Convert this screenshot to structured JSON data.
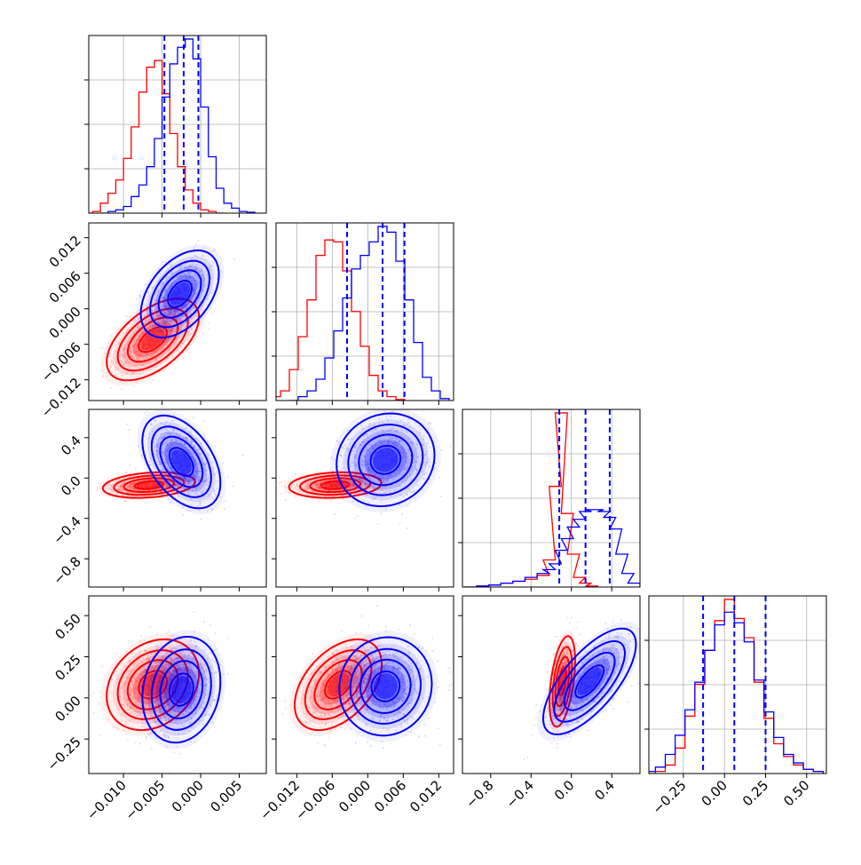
{
  "chart_data": {
    "type": "corner",
    "series": [
      {
        "name": "",
        "color": "#ff0000"
      },
      {
        "name": "",
        "color": "#0000ff"
      }
    ],
    "parameters": [
      {
        "range": [
          -0.0145,
          0.0085
        ],
        "ticks": [
          -0.01,
          -0.005,
          0.0,
          0.005
        ],
        "tick_labels": [
          "−0.010",
          "−0.005",
          "0.000",
          "0.005"
        ]
      },
      {
        "range": [
          -0.0155,
          0.0145
        ],
        "ticks": [
          -0.012,
          -0.006,
          0.0,
          0.006,
          0.012
        ],
        "tick_labels": [
          "−0.012",
          "−0.006",
          "0.000",
          "0.006",
          "0.012"
        ]
      },
      {
        "range": [
          -1.08,
          0.68
        ],
        "ticks": [
          -0.8,
          -0.4,
          0.0,
          0.4
        ],
        "tick_labels": [
          "−0.8",
          "−0.4",
          "0.0",
          "0.4"
        ]
      },
      {
        "range": [
          -0.46,
          0.62
        ],
        "ticks": [
          -0.25,
          0.0,
          0.25,
          0.5
        ],
        "tick_labels": [
          "−0.25",
          "0.00",
          "0.25",
          "0.50"
        ]
      }
    ],
    "diagonal": [
      {
        "blue_quantiles": [
          -0.0047,
          -0.0022,
          -0.0003
        ],
        "red": [
          [
            -0.0145,
            0
          ],
          [
            -0.0135,
            0.01
          ],
          [
            -0.0125,
            0.06
          ],
          [
            -0.0115,
            0.12
          ],
          [
            -0.0105,
            0.2
          ],
          [
            -0.0095,
            0.33
          ],
          [
            -0.0085,
            0.52
          ],
          [
            -0.0075,
            0.73
          ],
          [
            -0.0065,
            0.88
          ],
          [
            -0.0055,
            0.92
          ],
          [
            -0.0045,
            0.72
          ],
          [
            -0.0035,
            0.48
          ],
          [
            -0.0025,
            0.28
          ],
          [
            -0.0015,
            0.14
          ],
          [
            -0.0005,
            0.06
          ],
          [
            0.0005,
            0.02
          ],
          [
            0.0015,
            0.01
          ],
          [
            0.0025,
            0
          ]
        ],
        "blue": [
          [
            -0.0125,
            0
          ],
          [
            -0.0115,
            0.01
          ],
          [
            -0.0105,
            0.02
          ],
          [
            -0.0095,
            0.04
          ],
          [
            -0.0085,
            0.1
          ],
          [
            -0.0075,
            0.17
          ],
          [
            -0.0065,
            0.28
          ],
          [
            -0.0055,
            0.45
          ],
          [
            -0.0045,
            0.7
          ],
          [
            -0.0035,
            0.9
          ],
          [
            -0.0025,
            1.0
          ],
          [
            -0.0015,
            1.05
          ],
          [
            -0.0005,
            0.93
          ],
          [
            0.0005,
            0.64
          ],
          [
            0.0015,
            0.34
          ],
          [
            0.0025,
            0.15
          ],
          [
            0.0035,
            0.06
          ],
          [
            0.0045,
            0.03
          ],
          [
            0.0055,
            0.01
          ],
          [
            0.0065,
            0.005
          ]
        ]
      },
      {
        "blue_quantiles": [
          -0.0035,
          0.0025,
          0.0062
        ],
        "red": [
          [
            -0.0155,
            0.02
          ],
          [
            -0.014,
            0.05
          ],
          [
            -0.0125,
            0.16
          ],
          [
            -0.011,
            0.33
          ],
          [
            -0.0095,
            0.52
          ],
          [
            -0.008,
            0.75
          ],
          [
            -0.0065,
            0.83
          ],
          [
            -0.005,
            0.82
          ],
          [
            -0.0035,
            0.67
          ],
          [
            -0.002,
            0.46
          ],
          [
            -0.0005,
            0.28
          ],
          [
            0.001,
            0.13
          ],
          [
            0.0025,
            0.05
          ],
          [
            0.004,
            0.02
          ],
          [
            0.0055,
            0.005
          ]
        ],
        "blue": [
          [
            -0.0125,
            0
          ],
          [
            -0.011,
            0.02
          ],
          [
            -0.0095,
            0.05
          ],
          [
            -0.008,
            0.11
          ],
          [
            -0.0065,
            0.22
          ],
          [
            -0.005,
            0.36
          ],
          [
            -0.0035,
            0.53
          ],
          [
            -0.002,
            0.68
          ],
          [
            -0.0005,
            0.75
          ],
          [
            0.001,
            0.82
          ],
          [
            0.0025,
            0.9
          ],
          [
            0.004,
            0.87
          ],
          [
            0.0055,
            0.72
          ],
          [
            0.007,
            0.52
          ],
          [
            0.0085,
            0.3
          ],
          [
            0.01,
            0.12
          ],
          [
            0.0115,
            0.05
          ],
          [
            0.013,
            0.01
          ]
        ]
      },
      {
        "blue_quantiles": [
          -0.12,
          0.14,
          0.38
        ],
        "red": [
          [
            -1.0,
            0
          ],
          [
            -0.88,
            0.005
          ],
          [
            -0.76,
            0.01
          ],
          [
            -0.64,
            0.02
          ],
          [
            -0.52,
            0.03
          ],
          [
            -0.4,
            0.04
          ],
          [
            -0.28,
            0.06
          ],
          [
            -0.22,
            0.14
          ],
          [
            -0.16,
            0.52
          ],
          [
            -0.1,
            0.9
          ],
          [
            -0.04,
            0.38
          ],
          [
            0.02,
            0.17
          ],
          [
            0.08,
            0.05
          ],
          [
            0.14,
            0.02
          ],
          [
            0.2,
            0.005
          ]
        ],
        "blue": [
          [
            -1.0,
            0
          ],
          [
            -0.88,
            0.005
          ],
          [
            -0.76,
            0.01
          ],
          [
            -0.64,
            0.02
          ],
          [
            -0.52,
            0.03
          ],
          [
            -0.4,
            0.05
          ],
          [
            -0.28,
            0.07
          ],
          [
            -0.22,
            0.09
          ],
          [
            -0.16,
            0.12
          ],
          [
            -0.1,
            0.19
          ],
          [
            -0.04,
            0.25
          ],
          [
            0.02,
            0.31
          ],
          [
            0.08,
            0.35
          ],
          [
            0.14,
            0.39
          ],
          [
            0.2,
            0.4
          ],
          [
            0.26,
            0.4
          ],
          [
            0.32,
            0.39
          ],
          [
            0.38,
            0.36
          ],
          [
            0.44,
            0.3
          ],
          [
            0.5,
            0.17
          ],
          [
            0.56,
            0.07
          ],
          [
            0.62,
            0.02
          ]
        ]
      },
      {
        "blue_quantiles": [
          -0.13,
          0.06,
          0.25
        ],
        "red": [
          [
            -0.45,
            0
          ],
          [
            -0.39,
            0.01
          ],
          [
            -0.33,
            0.04
          ],
          [
            -0.27,
            0.12
          ],
          [
            -0.21,
            0.27
          ],
          [
            -0.15,
            0.42
          ],
          [
            -0.09,
            0.58
          ],
          [
            -0.03,
            0.72
          ],
          [
            0.03,
            0.82
          ],
          [
            0.09,
            0.73
          ],
          [
            0.15,
            0.64
          ],
          [
            0.21,
            0.43
          ],
          [
            0.27,
            0.26
          ],
          [
            0.33,
            0.14
          ],
          [
            0.39,
            0.08
          ],
          [
            0.45,
            0.04
          ],
          [
            0.51,
            0.02
          ],
          [
            0.57,
            0.01
          ]
        ],
        "blue": [
          [
            -0.45,
            0.01
          ],
          [
            -0.39,
            0.03
          ],
          [
            -0.33,
            0.09
          ],
          [
            -0.27,
            0.18
          ],
          [
            -0.21,
            0.3
          ],
          [
            -0.15,
            0.43
          ],
          [
            -0.09,
            0.58
          ],
          [
            -0.03,
            0.7
          ],
          [
            0.03,
            0.76
          ],
          [
            0.09,
            0.71
          ],
          [
            0.15,
            0.62
          ],
          [
            0.21,
            0.44
          ],
          [
            0.27,
            0.29
          ],
          [
            0.33,
            0.17
          ],
          [
            0.39,
            0.09
          ],
          [
            0.45,
            0.05
          ],
          [
            0.51,
            0.02
          ],
          [
            0.57,
            0.01
          ]
        ]
      }
    ],
    "pairs": [
      {
        "row": 1,
        "col": 0,
        "red": {
          "mx": -0.0062,
          "my": -0.0052,
          "sx": 0.0026,
          "sy": 0.003,
          "rho": 0.55
        },
        "blue": {
          "mx": -0.0027,
          "my": 0.0025,
          "sx": 0.0022,
          "sy": 0.0032,
          "rho": 0.45
        }
      },
      {
        "row": 2,
        "col": 0,
        "red": {
          "mx": -0.0067,
          "my": -0.07,
          "sx": 0.0026,
          "sy": 0.055,
          "rho": 0.25
        },
        "blue": {
          "mx": -0.0025,
          "my": 0.16,
          "sx": 0.0022,
          "sy": 0.2,
          "rho": -0.45
        }
      },
      {
        "row": 2,
        "col": 1,
        "red": {
          "mx": -0.0055,
          "my": -0.07,
          "sx": 0.0034,
          "sy": 0.055,
          "rho": 0.15
        },
        "blue": {
          "mx": 0.003,
          "my": 0.18,
          "sx": 0.0036,
          "sy": 0.2,
          "rho": 0.1
        }
      },
      {
        "row": 3,
        "col": 0,
        "red": {
          "mx": -0.0062,
          "my": 0.08,
          "sx": 0.0026,
          "sy": 0.12,
          "rho": 0.25
        },
        "blue": {
          "mx": -0.0025,
          "my": 0.05,
          "sx": 0.0022,
          "sy": 0.14,
          "rho": 0.15
        }
      },
      {
        "row": 3,
        "col": 1,
        "red": {
          "mx": -0.005,
          "my": 0.08,
          "sx": 0.0032,
          "sy": 0.12,
          "rho": 0.45
        },
        "blue": {
          "mx": 0.003,
          "my": 0.07,
          "sx": 0.0034,
          "sy": 0.13,
          "rho": 0.05
        }
      },
      {
        "row": 3,
        "col": 2,
        "red": {
          "mx": -0.09,
          "my": 0.1,
          "sx": 0.055,
          "sy": 0.12,
          "rho": 0.45
        },
        "blue": {
          "mx": 0.18,
          "my": 0.1,
          "sx": 0.2,
          "sy": 0.14,
          "rho": 0.7
        }
      }
    ]
  }
}
